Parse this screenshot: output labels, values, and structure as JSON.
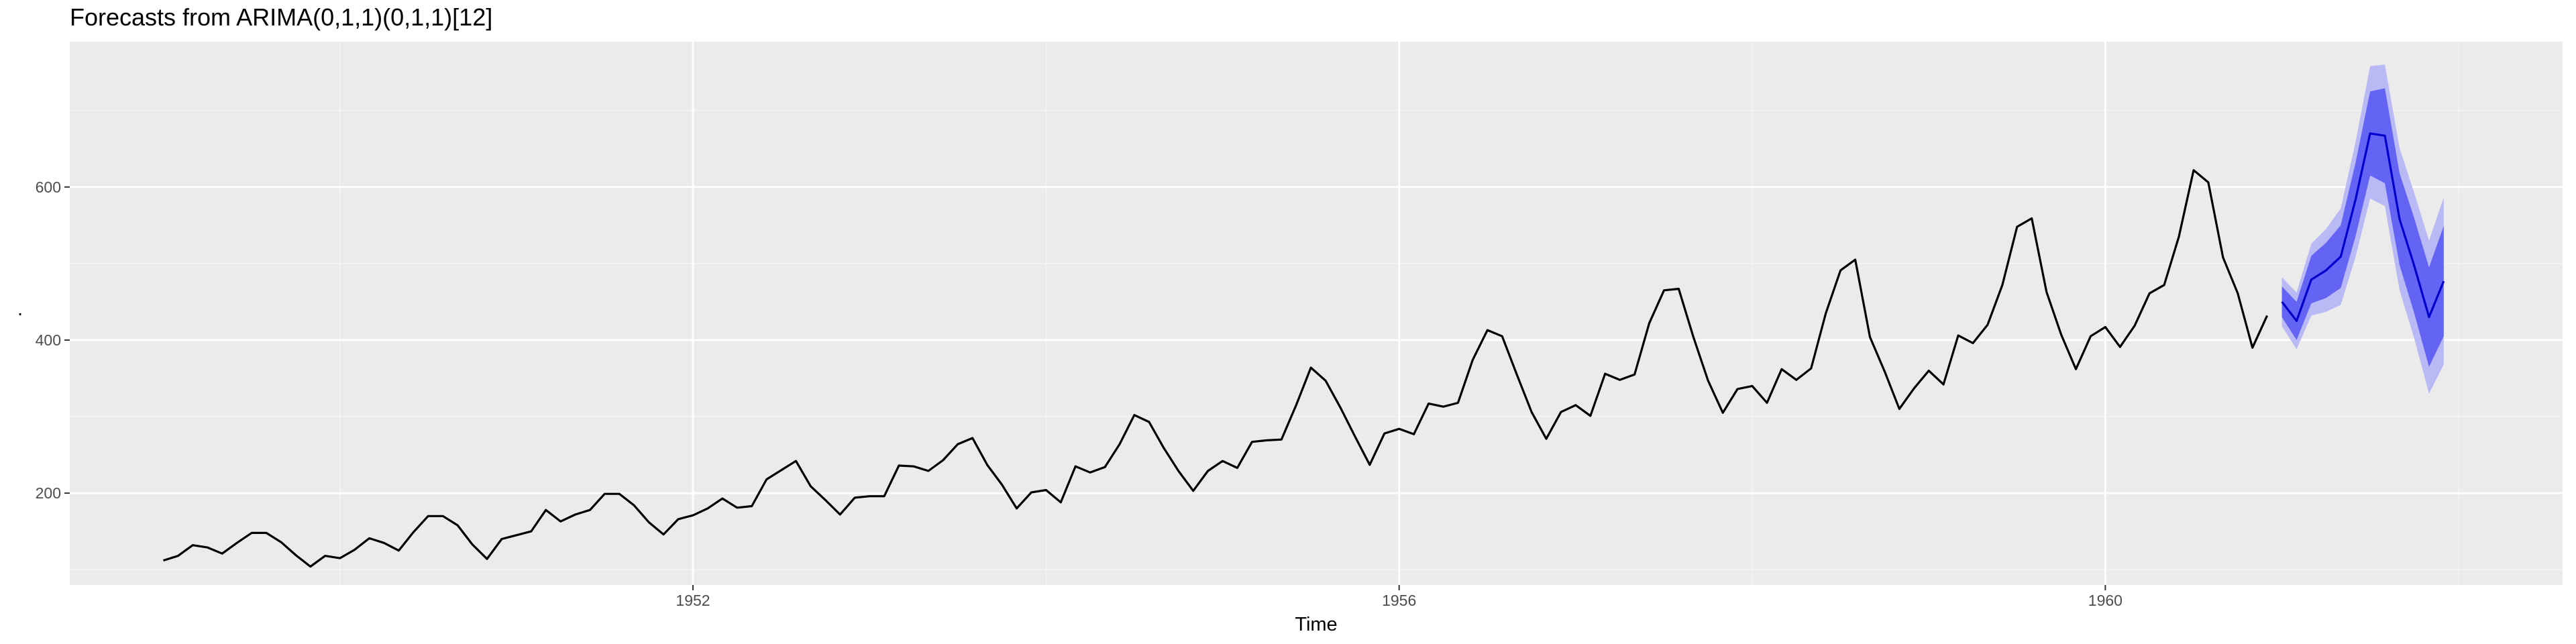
{
  "chart_data": {
    "type": "line",
    "title": "Forecasts from ARIMA(0,1,1)(0,1,1)[12]",
    "xlabel": "Time",
    "ylabel": ".",
    "xlim": [
      1948.47,
      1962.59
    ],
    "ylim": [
      80,
      790
    ],
    "x_ticks": [
      1952,
      1956,
      1960
    ],
    "y_ticks": [
      200,
      400,
      600
    ],
    "grid": true,
    "legend": "none",
    "series": [
      {
        "kind": "observed",
        "start": 1949.0,
        "step": 0.08333333,
        "values": [
          112,
          118,
          132,
          129,
          121,
          135,
          148,
          148,
          136,
          119,
          104,
          118,
          115,
          126,
          141,
          135,
          125,
          149,
          170,
          170,
          158,
          133,
          114,
          140,
          145,
          150,
          178,
          163,
          172,
          178,
          199,
          199,
          184,
          162,
          146,
          166,
          171,
          180,
          193,
          181,
          183,
          218,
          230,
          242,
          209,
          191,
          172,
          194,
          196,
          196,
          236,
          235,
          229,
          243,
          264,
          272,
          237,
          211,
          180,
          201,
          204,
          188,
          235,
          227,
          234,
          264,
          302,
          293,
          259,
          229,
          203,
          229,
          242,
          233,
          267,
          269,
          270,
          315,
          364,
          347,
          312,
          274,
          237,
          278,
          284,
          277,
          317,
          313,
          318,
          374,
          413,
          405,
          355,
          306,
          271,
          306,
          315,
          301,
          356,
          348,
          355,
          422,
          465,
          467,
          404,
          347,
          305,
          336,
          340,
          318,
          362,
          348,
          363,
          435,
          491,
          505,
          404,
          359,
          310,
          337,
          360,
          342,
          406,
          396,
          420,
          472,
          548,
          559,
          463,
          407,
          362,
          405,
          417,
          391,
          419,
          461,
          472,
          535,
          622,
          606,
          508,
          461,
          390,
          432
        ]
      },
      {
        "kind": "forecast",
        "start": 1961.0,
        "step": 0.08333333,
        "values": [
          450,
          425,
          479,
          491,
          509,
          583,
          670,
          667,
          558,
          497,
          430,
          477
        ],
        "lo80": [
          430,
          400,
          448,
          455,
          468,
          535,
          615,
          605,
          498,
          435,
          365,
          405
        ],
        "hi80": [
          470,
          450,
          510,
          527,
          550,
          631,
          725,
          729,
          618,
          559,
          495,
          549
        ],
        "lo95": [
          418,
          388,
          432,
          437,
          446,
          508,
          585,
          575,
          465,
          402,
          330,
          368
        ],
        "hi95": [
          482,
          462,
          526,
          545,
          572,
          658,
          758,
          760,
          651,
          592,
          530,
          586
        ]
      }
    ],
    "colors": {
      "panel": "#ebebeb",
      "grid_major": "#ffffff",
      "grid_minor": "#f5f5f5",
      "line": "#000000",
      "forecast_line": "#0000cc",
      "band80": "#6464f4",
      "band95": "#b9b9f5",
      "tick_label": "#4d4d4d",
      "tick_mark": "#333333"
    }
  }
}
